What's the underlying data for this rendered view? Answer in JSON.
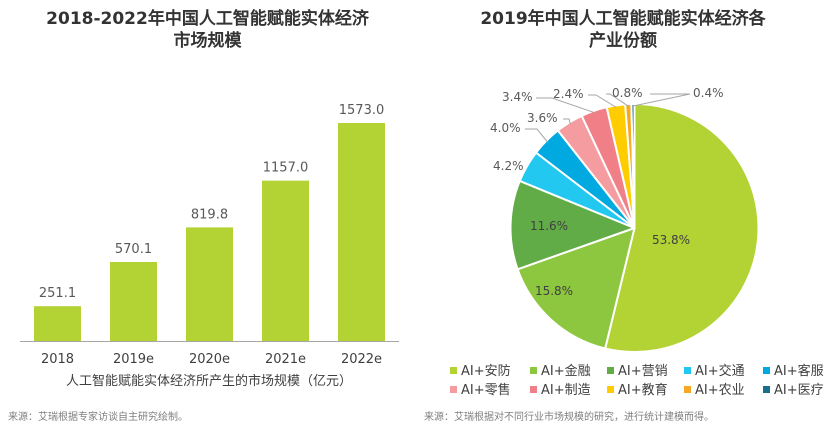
{
  "chart_data": [
    {
      "type": "bar",
      "title": "2018-2022年中国人工智能赋能实体经济市场规模",
      "title_lines": [
        "2018-2022年中国人工智能赋能实体经济",
        "市场规模"
      ],
      "categories": [
        "2018",
        "2019e",
        "2020e",
        "2021e",
        "2022e"
      ],
      "values": [
        251.1,
        570.1,
        819.8,
        1157.0,
        1573.0
      ],
      "value_labels": [
        "251.1",
        "570.1",
        "819.8",
        "1157.0",
        "1573.0"
      ],
      "xlabel": "人工智能赋能实体经济所产生的市场规模（亿元）",
      "ylabel": "",
      "ylim": [
        0,
        1573.0
      ],
      "grid": false,
      "bar_color": "#b3d234",
      "source": "来源：艾瑞根据专家访谈自主研究绘制。"
    },
    {
      "type": "pie",
      "title": "2019年中国人工智能赋能实体经济各产业份额",
      "title_lines": [
        "2019年中国人工智能赋能实体经济各",
        "产业份额"
      ],
      "slices": [
        {
          "name": "AI+安防",
          "value": 53.8,
          "label": "53.8%",
          "color": "#b3d234"
        },
        {
          "name": "AI+金融",
          "value": 15.8,
          "label": "15.8%",
          "color": "#8dc63f"
        },
        {
          "name": "AI+营销",
          "value": 11.6,
          "label": "11.6%",
          "color": "#62ac47"
        },
        {
          "name": "AI+交通",
          "value": 4.2,
          "label": "4.2%",
          "color": "#23c8f0"
        },
        {
          "name": "AI+客服",
          "value": 4.0,
          "label": "4.0%",
          "color": "#00a9e0"
        },
        {
          "name": "AI+零售",
          "value": 3.6,
          "label": "3.6%",
          "color": "#f49ca0"
        },
        {
          "name": "AI+制造",
          "value": 3.4,
          "label": "3.4%",
          "color": "#f07f88"
        },
        {
          "name": "AI+教育",
          "value": 2.4,
          "label": "2.4%",
          "color": "#ffcc00"
        },
        {
          "name": "AI+农业",
          "value": 0.8,
          "label": "0.8%",
          "color": "#f7a823"
        },
        {
          "name": "AI+医疗",
          "value": 0.4,
          "label": "0.4%",
          "color": "#1a6e8e"
        }
      ],
      "legend": "bottom",
      "source": "来源：艾瑞根据对不同行业市场规模的研究，进行统计建模而得。"
    }
  ]
}
